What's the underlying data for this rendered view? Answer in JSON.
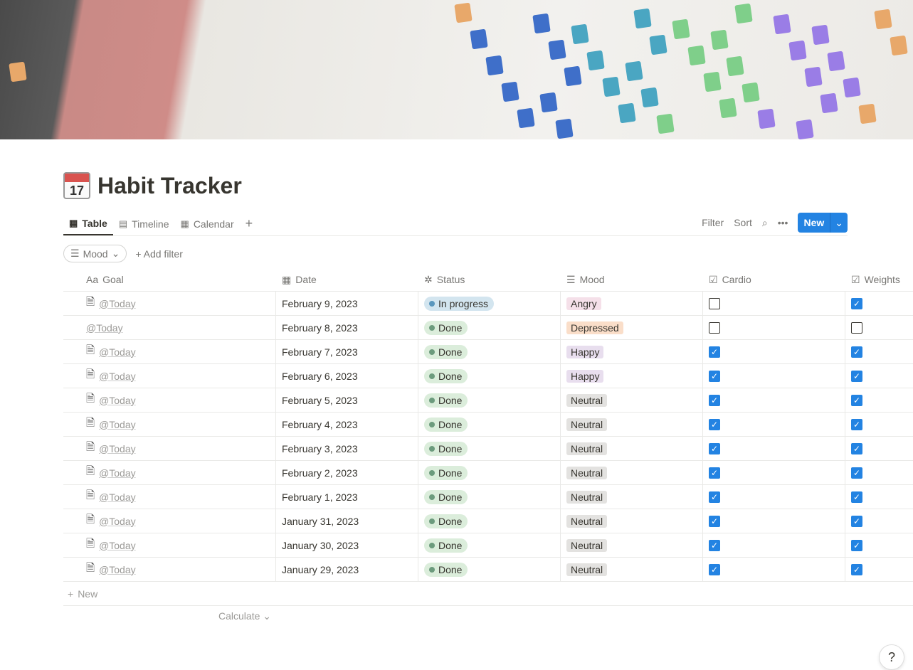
{
  "page": {
    "title": "Habit Tracker",
    "emoji_text": "17"
  },
  "tabs": [
    {
      "label": "Table",
      "icon": "table-icon"
    },
    {
      "label": "Timeline",
      "icon": "timeline-icon"
    },
    {
      "label": "Calendar",
      "icon": "calendar-icon"
    }
  ],
  "toolbar": {
    "filter": "Filter",
    "sort": "Sort",
    "new": "New"
  },
  "filters": {
    "mood_chip": "Mood",
    "add_filter": "Add filter"
  },
  "columns": [
    "Goal",
    "Date",
    "Status",
    "Mood",
    "Cardio",
    "Weights"
  ],
  "column_icons": {
    "goal": "Aa"
  },
  "rows": [
    {
      "goal": "@Today",
      "date": "February 9, 2023",
      "status": "In progress",
      "mood": "Angry",
      "cardio": false,
      "weights": true,
      "doc": true
    },
    {
      "goal": "@Today",
      "date": "February 8, 2023",
      "status": "Done",
      "mood": "Depressed",
      "cardio": false,
      "weights": false,
      "doc": false
    },
    {
      "goal": "@Today",
      "date": "February 7, 2023",
      "status": "Done",
      "mood": "Happy",
      "cardio": true,
      "weights": true,
      "doc": true
    },
    {
      "goal": "@Today",
      "date": "February 6, 2023",
      "status": "Done",
      "mood": "Happy",
      "cardio": true,
      "weights": true,
      "doc": true
    },
    {
      "goal": "@Today",
      "date": "February 5, 2023",
      "status": "Done",
      "mood": "Neutral",
      "cardio": true,
      "weights": true,
      "doc": true
    },
    {
      "goal": "@Today",
      "date": "February 4, 2023",
      "status": "Done",
      "mood": "Neutral",
      "cardio": true,
      "weights": true,
      "doc": true
    },
    {
      "goal": "@Today",
      "date": "February 3, 2023",
      "status": "Done",
      "mood": "Neutral",
      "cardio": true,
      "weights": true,
      "doc": true
    },
    {
      "goal": "@Today",
      "date": "February 2, 2023",
      "status": "Done",
      "mood": "Neutral",
      "cardio": true,
      "weights": true,
      "doc": true
    },
    {
      "goal": "@Today",
      "date": "February 1, 2023",
      "status": "Done",
      "mood": "Neutral",
      "cardio": true,
      "weights": true,
      "doc": true
    },
    {
      "goal": "@Today",
      "date": "January 31, 2023",
      "status": "Done",
      "mood": "Neutral",
      "cardio": true,
      "weights": true,
      "doc": true
    },
    {
      "goal": "@Today",
      "date": "January 30, 2023",
      "status": "Done",
      "mood": "Neutral",
      "cardio": true,
      "weights": true,
      "doc": true
    },
    {
      "goal": "@Today",
      "date": "January 29, 2023",
      "status": "Done",
      "mood": "Neutral",
      "cardio": true,
      "weights": true,
      "doc": true
    }
  ],
  "status_colors": {
    "In progress": {
      "bg": "#d3e5ef",
      "dot": "#5b97bd"
    },
    "Done": {
      "bg": "#dbeddb",
      "dot": "#6c9b7d"
    }
  },
  "mood_colors": {
    "Angry": "#f5e0e9",
    "Depressed": "#fadec9",
    "Happy": "#e8deee",
    "Neutral": "#e3e2e0"
  },
  "footer": {
    "new_row": "New",
    "calculate": "Calculate"
  },
  "help": "?",
  "accent": "#2383e2"
}
